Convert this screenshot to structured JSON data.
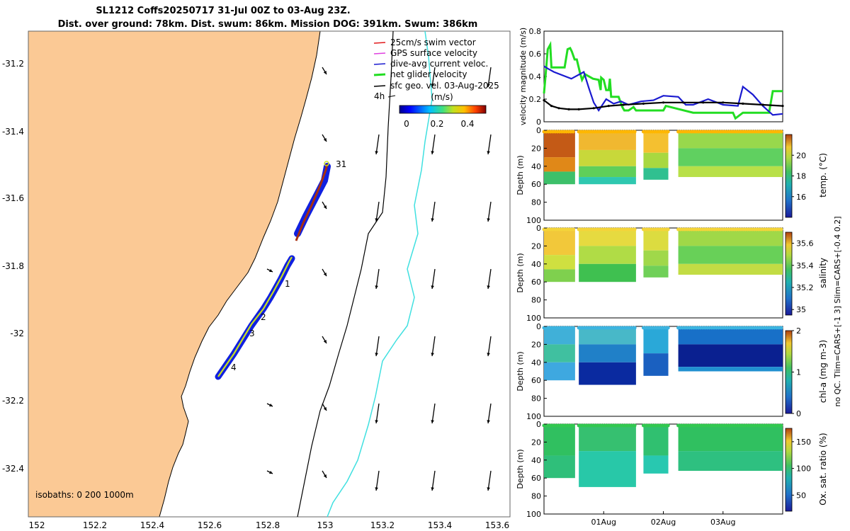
{
  "header": {
    "line1": "SL1212 Coffs20250717 31-Jul 00Z to 03-Aug 23Z.",
    "line2": "Dist. over ground: 78km. Dist. swum: 86km. Mission DOG: 391km. Swum: 386km"
  },
  "map": {
    "lon_ticks": [
      "152",
      "152.2",
      "152.4",
      "152.6",
      "152.8",
      "153",
      "153.2",
      "153.4",
      "153.6"
    ],
    "lat_ticks": [
      "-31.2",
      "-31.4",
      "-31.6",
      "-31.8",
      "-32",
      "-32.2",
      "-32.4"
    ],
    "lon_range": [
      151.98,
      153.66
    ],
    "lat_range": [
      -32.55,
      -31.06
    ],
    "isobaths_label": "isobaths: 0   200  1000m",
    "legend": [
      {
        "label": "25cm/s swim vector",
        "color": "#e2191b"
      },
      {
        "label": "GPS surface velocity",
        "color": "#e040e0"
      },
      {
        "label": "dive-avg current veloc.",
        "color": "#1a1ad0"
      },
      {
        "label": "net glider velocity",
        "color": "#22dd22"
      },
      {
        "label": "sfc geo. vel. 03-Aug-2025",
        "color": "#000000"
      }
    ],
    "colorbar_title": "(m/s)",
    "colorbar_ticks": [
      "0",
      "0.2",
      "0.4"
    ],
    "scale_label": "4h",
    "day_labels": [
      "31",
      "1",
      "2",
      "3",
      "4"
    ],
    "colors": {
      "land": "#fbc995",
      "isobath_200": "#000000",
      "isobath_1000": "#40e0e0",
      "track_blue": "#1020e0"
    }
  },
  "chart_data": [
    {
      "type": "line",
      "title": "",
      "ylabel": "velocity magnitude (m/s)",
      "ylim": [
        0,
        0.8
      ],
      "yticks": [
        "0",
        "0.2",
        "0.4",
        "0.6",
        "0.8"
      ],
      "series": [
        {
          "name": "net glider velocity",
          "color": "#22dd22",
          "x": [
            0,
            0.6,
            1.5,
            2.5,
            3,
            7,
            8.3,
            9.5,
            10.5,
            11.2,
            12.3,
            13.2,
            14.5,
            15.3,
            16.5,
            19.7,
            22,
            22.8,
            23,
            24,
            25,
            26,
            26.5,
            27,
            30,
            31.5,
            32.3,
            33,
            34,
            36,
            37,
            48,
            49,
            60,
            63,
            68,
            76,
            77,
            80,
            82,
            85,
            88,
            90.5,
            92,
            96
          ],
          "values": [
            0.25,
            0.4,
            0.64,
            0.68,
            0.48,
            0.48,
            0.48,
            0.64,
            0.65,
            0.62,
            0.55,
            0.55,
            0.43,
            0.37,
            0.42,
            0.38,
            0.37,
            0.28,
            0.39,
            0.37,
            0.28,
            0.28,
            0.38,
            0.22,
            0.22,
            0.13,
            0.1,
            0.1,
            0.1,
            0.13,
            0.1,
            0.1,
            0.14,
            0.08,
            0.08,
            0.08,
            0.08,
            0.03,
            0.08,
            0.08,
            0.08,
            0.08,
            0.08,
            0.27,
            0.27
          ]
        },
        {
          "name": "dive-avg current veloc.",
          "color": "#1a1ad0",
          "x": [
            0,
            1.5,
            4,
            11,
            16,
            18,
            20,
            22,
            25,
            28,
            31,
            34,
            39,
            44,
            48,
            54,
            57,
            60,
            66,
            72,
            78,
            80,
            84,
            88,
            92,
            96
          ],
          "values": [
            0.49,
            0.47,
            0.44,
            0.38,
            0.44,
            0.3,
            0.17,
            0.1,
            0.2,
            0.16,
            0.18,
            0.15,
            0.18,
            0.19,
            0.23,
            0.22,
            0.15,
            0.15,
            0.2,
            0.15,
            0.14,
            0.31,
            0.24,
            0.14,
            0.06,
            0.07
          ]
        },
        {
          "name": "sfc geo. vel.",
          "color": "#000000",
          "x": [
            0,
            3,
            6,
            10,
            14,
            20,
            26,
            32,
            40,
            48,
            56,
            64,
            72,
            80,
            88,
            96
          ],
          "values": [
            0.19,
            0.14,
            0.12,
            0.11,
            0.11,
            0.12,
            0.14,
            0.15,
            0.16,
            0.17,
            0.17,
            0.17,
            0.17,
            0.16,
            0.15,
            0.14
          ]
        }
      ]
    },
    {
      "type": "heatmap",
      "ylabel": "Depth (m)",
      "clabel": "temp. (°C)",
      "ylim": [
        0,
        100
      ],
      "yticks": [
        "0",
        "20",
        "40",
        "60",
        "80",
        "100"
      ],
      "cticks": [
        "16",
        "18",
        "20"
      ],
      "crange": [
        14,
        22
      ],
      "surface_color": "#ffb700",
      "segments": [
        {
          "bands": [
            [
              "#c45a16",
              0,
              30
            ],
            [
              "#e08818",
              30,
              46
            ],
            [
              "#3dc06a",
              46,
              60
            ]
          ]
        },
        {
          "bands": [
            [
              "#f0b830",
              0,
              22
            ],
            [
              "#c8d83a",
              22,
              40
            ],
            [
              "#5fcf5a",
              40,
              52
            ],
            [
              "#2fc8b0",
              52,
              60
            ]
          ]
        },
        {
          "bands": [
            [
              "#f4c030",
              0,
              25
            ],
            [
              "#a8d840",
              25,
              42
            ],
            [
              "#30c090",
              42,
              55
            ]
          ]
        },
        {
          "bands": [
            [
              "#98d84c",
              0,
              20
            ],
            [
              "#60d060",
              20,
              40
            ],
            [
              "#b8e048",
              40,
              52
            ]
          ]
        }
      ]
    },
    {
      "type": "heatmap",
      "ylabel": "Depth (m)",
      "clabel": "salinity",
      "ylim": [
        0,
        100
      ],
      "yticks": [
        "0",
        "20",
        "40",
        "60",
        "80",
        "100"
      ],
      "cticks": [
        "35",
        "35.2",
        "35.4",
        "35.6"
      ],
      "crange": [
        34.95,
        35.7
      ],
      "surface_color": "#f4d43a",
      "segments": [
        {
          "bands": [
            [
              "#f2c83a",
              0,
              30
            ],
            [
              "#cfe040",
              30,
              46
            ],
            [
              "#7fd04e",
              46,
              60
            ]
          ]
        },
        {
          "bands": [
            [
              "#e6da40",
              0,
              20
            ],
            [
              "#b0dc46",
              20,
              40
            ],
            [
              "#3fc050",
              40,
              60
            ]
          ]
        },
        {
          "bands": [
            [
              "#dcdc40",
              0,
              25
            ],
            [
              "#a0d84a",
              25,
              42
            ],
            [
              "#70d058",
              42,
              55
            ]
          ]
        },
        {
          "bands": [
            [
              "#a0d848",
              0,
              20
            ],
            [
              "#68d058",
              20,
              40
            ],
            [
              "#c2dc44",
              40,
              52
            ]
          ]
        }
      ]
    },
    {
      "type": "heatmap",
      "ylabel": "Depth (m)",
      "clabel": "chl-a (mg m-3)",
      "ylim": [
        0,
        100
      ],
      "yticks": [
        "0",
        "20",
        "40",
        "60",
        "80",
        "100"
      ],
      "cticks": [
        "0",
        "1",
        "2"
      ],
      "crange": [
        0,
        2
      ],
      "surface_color": "#3cb4e0",
      "segments": [
        {
          "bands": [
            [
              "#40b0d8",
              0,
              20
            ],
            [
              "#40c0a0",
              20,
              40
            ],
            [
              "#3ea8e0",
              40,
              60
            ]
          ]
        },
        {
          "bands": [
            [
              "#48b8c8",
              0,
              20
            ],
            [
              "#2080c8",
              20,
              40
            ],
            [
              "#0a2aa0",
              40,
              65
            ]
          ]
        },
        {
          "bands": [
            [
              "#2aa8d8",
              0,
              30
            ],
            [
              "#1a60c0",
              30,
              55
            ]
          ]
        },
        {
          "bands": [
            [
              "#1870c8",
              0,
              20
            ],
            [
              "#0a2090",
              20,
              45
            ],
            [
              "#2090d0",
              45,
              50
            ]
          ]
        }
      ]
    },
    {
      "type": "heatmap",
      "ylabel": "Depth (m)",
      "clabel": "Ox. sat. ratio (%)",
      "ylim": [
        0,
        100
      ],
      "yticks": [
        "0",
        "20",
        "40",
        "60",
        "80",
        "100"
      ],
      "cticks": [
        "50",
        "100",
        "150"
      ],
      "crange": [
        20,
        175
      ],
      "surface_color": "#32c850",
      "segments": [
        {
          "bands": [
            [
              "#30c060",
              0,
              35
            ],
            [
              "#2fbf7a",
              35,
              60
            ]
          ]
        },
        {
          "bands": [
            [
              "#36c070",
              0,
              30
            ],
            [
              "#28c8a8",
              30,
              70
            ]
          ]
        },
        {
          "bands": [
            [
              "#30c070",
              0,
              35
            ],
            [
              "#28c8b0",
              35,
              55
            ]
          ]
        },
        {
          "bands": [
            [
              "#30c060",
              0,
              30
            ],
            [
              "#2ec080",
              30,
              52
            ]
          ]
        }
      ]
    }
  ],
  "time_axis": {
    "labels": [
      "01Aug",
      "02Aug",
      "03Aug"
    ]
  },
  "side_note": "no QC. Tlim=CARS+[-1 3] Slim=CARS+[-0.4 0.2]"
}
